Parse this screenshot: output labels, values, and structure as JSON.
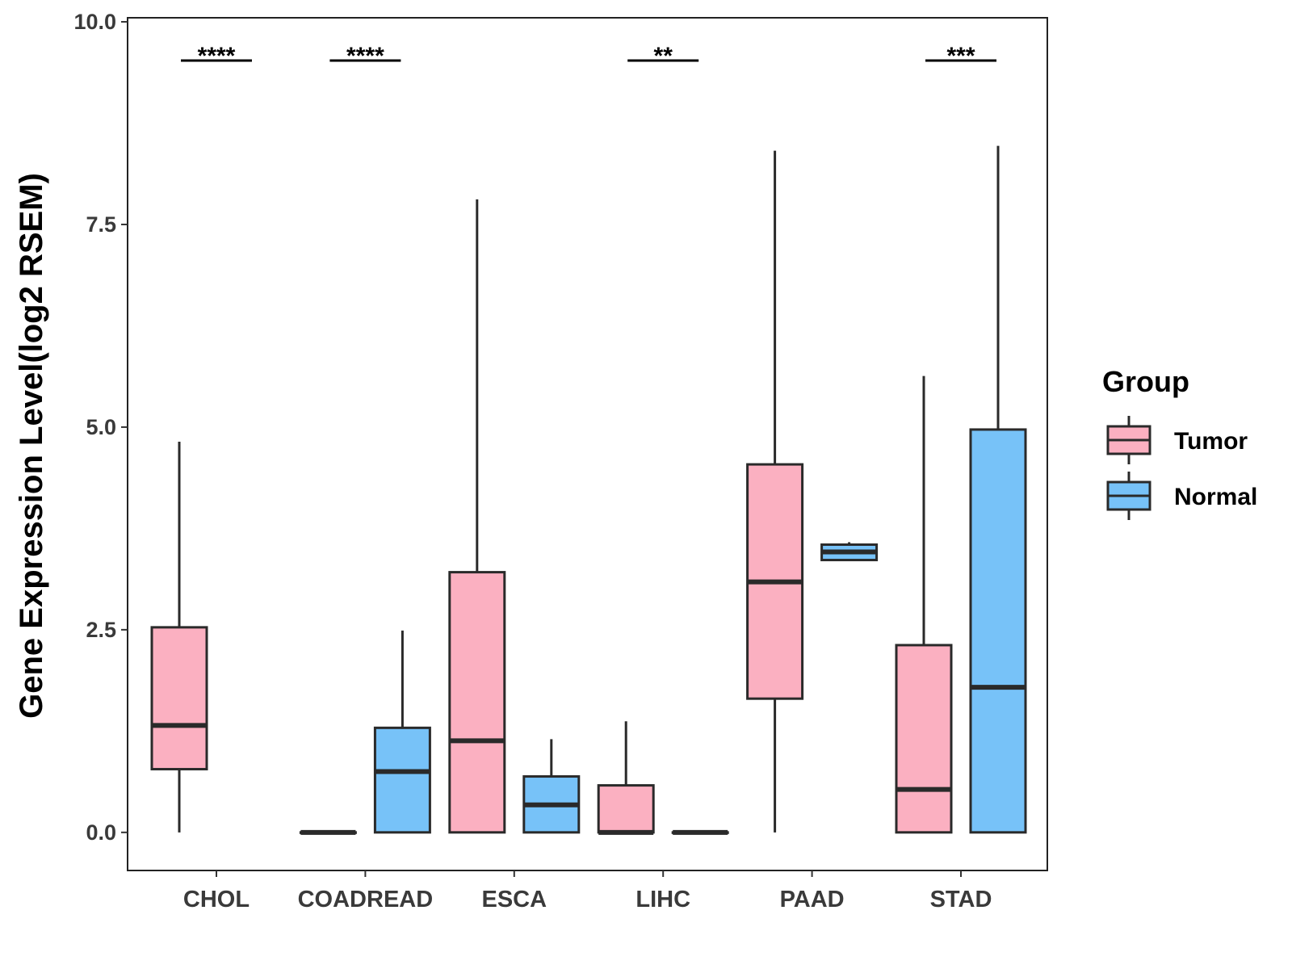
{
  "chart_data": {
    "type": "boxplot",
    "title": "",
    "xlabel": "",
    "ylabel": "Gene Expression Level(log2 RSEM)",
    "ylim": [
      -0.47,
      10.05
    ],
    "yticks": [
      "0.0",
      "2.5",
      "5.0",
      "7.5",
      "10.0"
    ],
    "grid": false,
    "categories": [
      "CHOL",
      "COADREAD",
      "ESCA",
      "LIHC",
      "PAAD",
      "STAD"
    ],
    "legend": {
      "title": "Group",
      "position": "right",
      "entries": [
        {
          "name": "Tumor",
          "color": "#FBB0C1"
        },
        {
          "name": "Normal",
          "color": "#77C2F8"
        }
      ]
    },
    "series": [
      {
        "name": "Tumor",
        "color": "#FBB0C1",
        "boxes": [
          {
            "category": "CHOL",
            "min": 0.0,
            "q1": 0.78,
            "median": 1.32,
            "q3": 2.53,
            "max": 4.82
          },
          {
            "category": "COADREAD",
            "min": 0.0,
            "q1": 0.0,
            "median": 0.0,
            "q3": 0.0,
            "max": 0.0
          },
          {
            "category": "ESCA",
            "min": 0.0,
            "q1": 0.0,
            "median": 1.13,
            "q3": 3.21,
            "max": 7.81
          },
          {
            "category": "LIHC",
            "min": 0.0,
            "q1": 0.0,
            "median": 0.0,
            "q3": 0.58,
            "max": 1.37
          },
          {
            "category": "PAAD",
            "min": 0.0,
            "q1": 1.65,
            "median": 3.09,
            "q3": 4.54,
            "max": 8.41
          },
          {
            "category": "STAD",
            "min": 0.0,
            "q1": 0.0,
            "median": 0.53,
            "q3": 2.31,
            "max": 5.63
          }
        ]
      },
      {
        "name": "Normal",
        "color": "#77C2F8",
        "boxes": [
          {
            "category": "CHOL",
            "present": false
          },
          {
            "category": "COADREAD",
            "min": 0.0,
            "q1": 0.0,
            "median": 0.75,
            "q3": 1.29,
            "max": 2.49
          },
          {
            "category": "ESCA",
            "min": 0.0,
            "q1": 0.0,
            "median": 0.34,
            "q3": 0.69,
            "max": 1.15
          },
          {
            "category": "LIHC",
            "min": 0.0,
            "q1": 0.0,
            "median": 0.0,
            "q3": 0.0,
            "max": 0.0
          },
          {
            "category": "PAAD",
            "min": 3.36,
            "q1": 3.36,
            "median": 3.46,
            "q3": 3.55,
            "max": 3.58
          },
          {
            "category": "STAD",
            "min": 0.0,
            "q1": 0.0,
            "median": 1.79,
            "q3": 4.97,
            "max": 8.47
          }
        ]
      }
    ],
    "significance": [
      {
        "category": "CHOL",
        "label": "****"
      },
      {
        "category": "COADREAD",
        "label": "****"
      },
      {
        "category": "LIHC",
        "label": "**"
      },
      {
        "category": "STAD",
        "label": "***"
      }
    ]
  }
}
